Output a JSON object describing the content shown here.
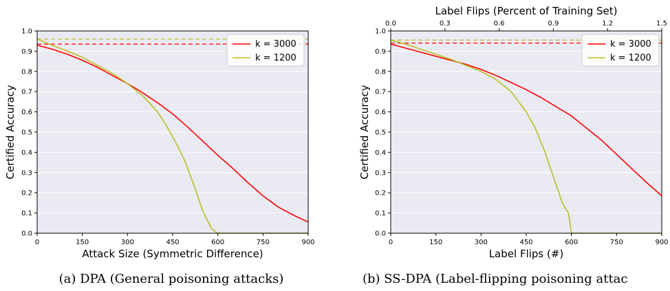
{
  "chart_data": [
    {
      "type": "line",
      "caption": "(a) DPA (General poisoning attacks)",
      "xlabel": "Attack Size (Symmetric Difference)",
      "ylabel": "Certified Accuracy",
      "xlim": [
        0,
        900
      ],
      "ylim": [
        0,
        1.0
      ],
      "xticks": [
        "0",
        "150",
        "300",
        "450",
        "600",
        "750",
        "900"
      ],
      "yticks": [
        "0.0",
        "0.1",
        "0.2",
        "0.3",
        "0.4",
        "0.5",
        "0.6",
        "0.7",
        "0.8",
        "0.9",
        "1.0"
      ],
      "grid": true,
      "legend_position": "top-right",
      "series": [
        {
          "name": "k = 3000",
          "color": "#ff0000",
          "baseline": 0.935,
          "x": [
            0,
            50,
            100,
            150,
            200,
            250,
            300,
            350,
            400,
            450,
            500,
            550,
            600,
            650,
            700,
            750,
            800,
            850,
            900
          ],
          "y": [
            0.93,
            0.91,
            0.885,
            0.855,
            0.82,
            0.78,
            0.74,
            0.695,
            0.645,
            0.59,
            0.525,
            0.455,
            0.385,
            0.32,
            0.25,
            0.185,
            0.13,
            0.09,
            0.055
          ]
        },
        {
          "name": "k = 1200",
          "color": "#bcbd22",
          "baseline": 0.96,
          "x": [
            0,
            50,
            100,
            150,
            200,
            250,
            300,
            350,
            400,
            430,
            460,
            490,
            520,
            550,
            580,
            600,
            650,
            700,
            750,
            800,
            850,
            900
          ],
          "y": [
            0.96,
            0.93,
            0.9,
            0.87,
            0.83,
            0.79,
            0.74,
            0.68,
            0.6,
            0.53,
            0.45,
            0.36,
            0.24,
            0.11,
            0.02,
            0.0,
            0.0,
            0.0,
            0.0,
            0.0,
            0.0,
            0.0
          ]
        }
      ]
    },
    {
      "type": "line",
      "caption": "(b) SS-DPA (Label-flipping poisoning attac",
      "title": "Label Flips (Percent of Training Set)",
      "xlabel": "Label Flips (#)",
      "ylabel": "Certified Accuracy",
      "xlim": [
        0,
        900
      ],
      "ylim": [
        0,
        1.0
      ],
      "xticks": [
        "0",
        "150",
        "300",
        "450",
        "600",
        "750",
        "900"
      ],
      "top_xticks": [
        "0.0",
        "0.3",
        "0.6",
        "0.9",
        "1.2",
        "1.5"
      ],
      "yticks": [
        "0.0",
        "0.1",
        "0.2",
        "0.3",
        "0.4",
        "0.5",
        "0.6",
        "0.7",
        "0.8",
        "0.9",
        "1.0"
      ],
      "grid": true,
      "legend_position": "top-right",
      "series": [
        {
          "name": "k = 3000",
          "color": "#ff0000",
          "baseline": 0.94,
          "x": [
            0,
            50,
            100,
            150,
            200,
            250,
            300,
            350,
            400,
            450,
            500,
            550,
            600,
            650,
            700,
            750,
            800,
            850,
            900
          ],
          "y": [
            0.935,
            0.915,
            0.895,
            0.875,
            0.855,
            0.835,
            0.81,
            0.78,
            0.745,
            0.71,
            0.67,
            0.625,
            0.58,
            0.52,
            0.46,
            0.39,
            0.32,
            0.25,
            0.185
          ]
        },
        {
          "name": "k = 1200",
          "color": "#bcbd22",
          "baseline": 0.955,
          "x": [
            0,
            50,
            100,
            150,
            200,
            250,
            300,
            350,
            400,
            450,
            480,
            510,
            540,
            570,
            590,
            600,
            650,
            700,
            750,
            800,
            850,
            900
          ],
          "y": [
            0.955,
            0.935,
            0.91,
            0.885,
            0.86,
            0.83,
            0.8,
            0.76,
            0.7,
            0.6,
            0.52,
            0.41,
            0.28,
            0.15,
            0.1,
            0.0,
            0.0,
            0.0,
            0.0,
            0.0,
            0.0,
            0.0
          ]
        }
      ]
    }
  ]
}
